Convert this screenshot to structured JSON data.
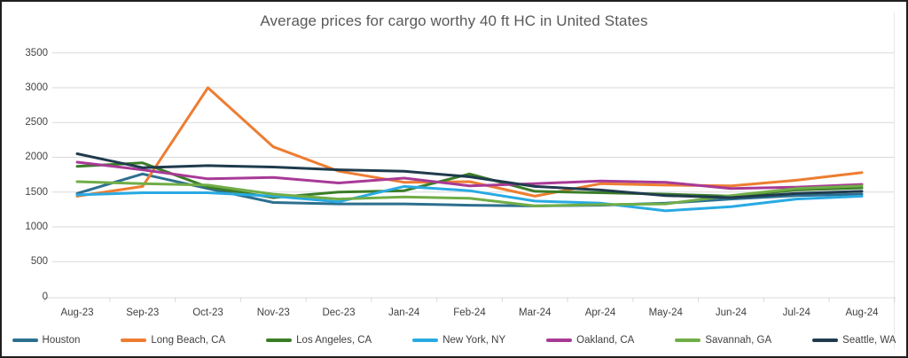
{
  "window": {
    "background": "#ffffff",
    "border_color": "#1f1f1f"
  },
  "chart_data": {
    "type": "line",
    "title": "Average prices for cargo worthy 40 ft HC in United States",
    "categories": [
      "Aug-23",
      "Sep-23",
      "Oct-23",
      "Nov-23",
      "Dec-23",
      "Jan-24",
      "Feb-24",
      "Mar-24",
      "Apr-24",
      "May-24",
      "Jun-24",
      "Jul-24",
      "Aug-24"
    ],
    "series": [
      {
        "name": "Houston",
        "color": "#2D6F8E",
        "values": [
          1480,
          1760,
          1550,
          1350,
          1330,
          1330,
          1310,
          1300,
          1310,
          1340,
          1400,
          1450,
          1470
        ]
      },
      {
        "name": "Long Beach, CA",
        "color": "#ED7D31",
        "values": [
          1440,
          1580,
          3000,
          2150,
          1800,
          1640,
          1650,
          1440,
          1620,
          1600,
          1590,
          1670,
          1780
        ]
      },
      {
        "name": "Los Angeles, CA",
        "color": "#3A7D27",
        "values": [
          1870,
          1920,
          1570,
          1420,
          1500,
          1520,
          1760,
          1510,
          1490,
          1470,
          1440,
          1530,
          1560
        ]
      },
      {
        "name": "New York, NY",
        "color": "#29AAE3",
        "values": [
          1460,
          1490,
          1490,
          1440,
          1360,
          1580,
          1520,
          1370,
          1340,
          1230,
          1290,
          1400,
          1440
        ]
      },
      {
        "name": "Oakland, CA",
        "color": "#A83A96",
        "values": [
          1930,
          1820,
          1690,
          1710,
          1630,
          1700,
          1590,
          1620,
          1660,
          1640,
          1550,
          1570,
          1610
        ]
      },
      {
        "name": "Savannah, GA",
        "color": "#70AD47",
        "values": [
          1650,
          1620,
          1600,
          1470,
          1400,
          1430,
          1410,
          1300,
          1320,
          1330,
          1450,
          1550,
          1590
        ]
      },
      {
        "name": "Seattle, WA",
        "color": "#1F3B4D",
        "values": [
          2050,
          1850,
          1880,
          1860,
          1820,
          1800,
          1720,
          1580,
          1530,
          1450,
          1420,
          1480,
          1510
        ]
      }
    ],
    "y_axis": {
      "min": 0,
      "max": 3500,
      "step": 500,
      "ticks": [
        "0",
        "500",
        "1000",
        "1500",
        "2000",
        "2500",
        "3000",
        "3500"
      ]
    },
    "grid": true,
    "legend_position": "bottom",
    "style": {
      "title_color": "#595959",
      "axis_text_color": "#404040",
      "gridline_color": "#D9D9D9",
      "axis_line_color": "#D9D9D9"
    }
  }
}
